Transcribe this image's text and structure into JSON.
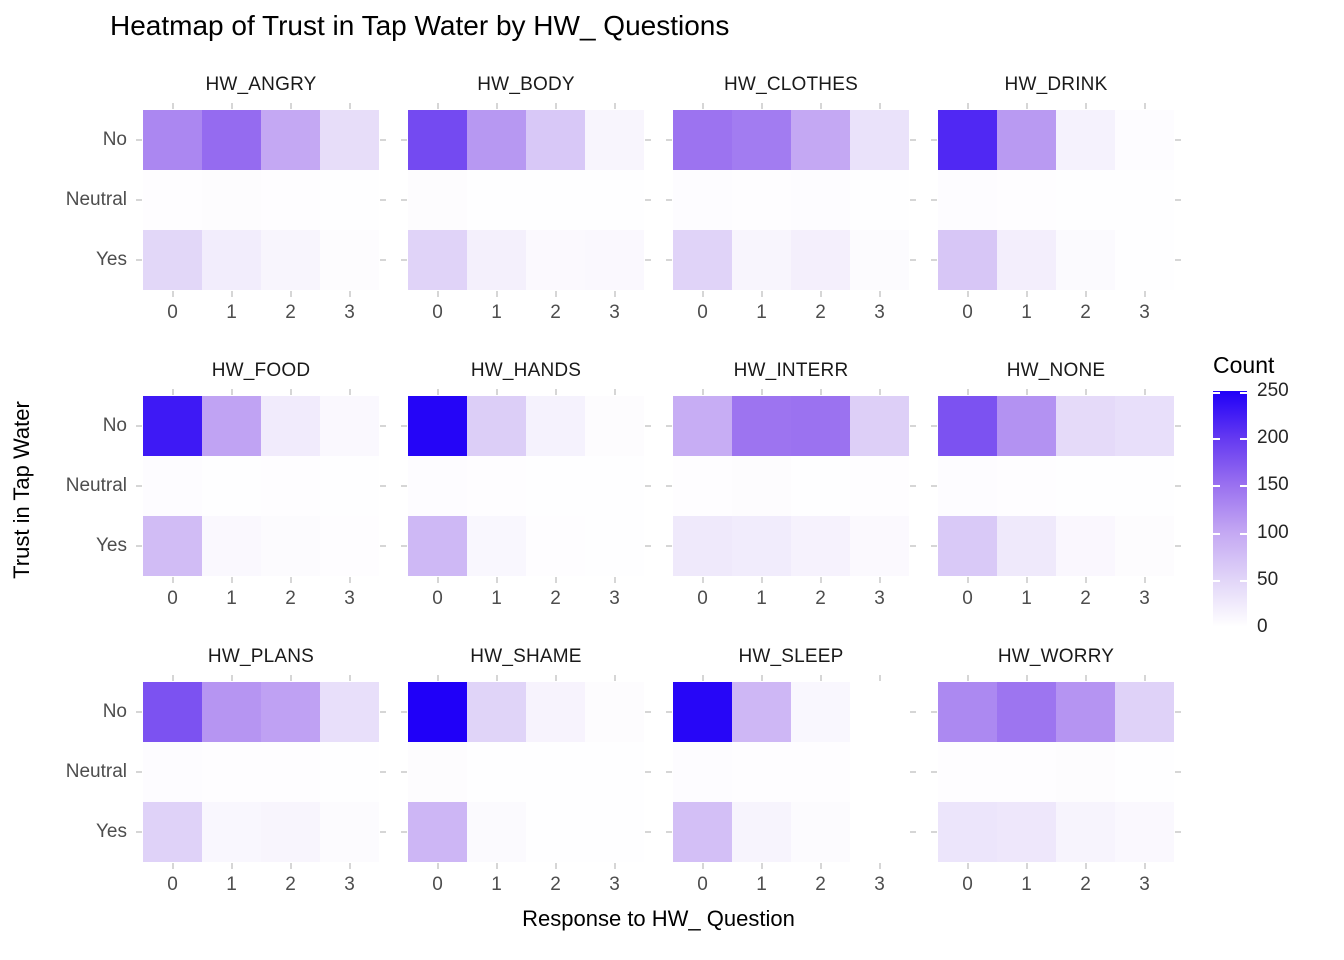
{
  "title": "Heatmap of Trust in Tap Water by HW_ Questions",
  "chart_data": {
    "type": "heatmap",
    "title": "Heatmap of Trust in Tap Water by HW_ Questions",
    "xlabel": "Response to HW_ Question",
    "ylabel": "Trust in Tap Water",
    "x_categories": [
      "0",
      "1",
      "2",
      "3"
    ],
    "y_categories": [
      "No",
      "Neutral",
      "Yes"
    ],
    "facets": [
      {
        "name": "HW_ANGRY",
        "values": [
          [
            130,
            155,
            100,
            40
          ],
          [
            2,
            4,
            2,
            1
          ],
          [
            48,
            22,
            12,
            4
          ]
        ]
      },
      {
        "name": "HW_BODY",
        "values": [
          [
            185,
            115,
            65,
            12
          ],
          [
            4,
            1,
            1,
            1
          ],
          [
            52,
            18,
            7,
            8
          ]
        ]
      },
      {
        "name": "HW_CLOTHES",
        "values": [
          [
            148,
            140,
            100,
            35
          ],
          [
            3,
            2,
            3,
            1
          ],
          [
            52,
            12,
            19,
            5
          ]
        ]
      },
      {
        "name": "HW_DRINK",
        "values": [
          [
            215,
            113,
            16,
            3
          ],
          [
            3,
            2,
            1,
            1
          ],
          [
            67,
            20,
            6,
            1
          ]
        ]
      },
      {
        "name": "HW_FOOD",
        "values": [
          [
            228,
            105,
            24,
            8
          ],
          [
            3,
            1,
            2,
            1
          ],
          [
            78,
            8,
            5,
            2
          ]
        ]
      },
      {
        "name": "HW_HANDS",
        "values": [
          [
            246,
            58,
            16,
            4
          ],
          [
            3,
            2,
            1,
            1
          ],
          [
            82,
            10,
            2,
            1
          ]
        ]
      },
      {
        "name": "HW_INTERR",
        "values": [
          [
            95,
            147,
            149,
            57
          ],
          [
            2,
            4,
            1,
            2
          ],
          [
            26,
            23,
            15,
            7
          ]
        ]
      },
      {
        "name": "HW_NONE",
        "values": [
          [
            178,
            120,
            44,
            38
          ],
          [
            3,
            2,
            1,
            1
          ],
          [
            63,
            26,
            9,
            4
          ]
        ]
      },
      {
        "name": "HW_PLANS",
        "values": [
          [
            178,
            117,
            106,
            38
          ],
          [
            3,
            2,
            2,
            1
          ],
          [
            53,
            10,
            12,
            5
          ]
        ]
      },
      {
        "name": "HW_SHAME",
        "values": [
          [
            250,
            51,
            14,
            4
          ],
          [
            4,
            1,
            1,
            1
          ],
          [
            84,
            6,
            1,
            1
          ]
        ]
      },
      {
        "name": "HW_SLEEP",
        "values": [
          [
            245,
            83,
            10,
            null
          ],
          [
            3,
            2,
            2,
            null
          ],
          [
            75,
            13,
            5,
            null
          ]
        ]
      },
      {
        "name": "HW_WORRY",
        "values": [
          [
            128,
            146,
            118,
            53
          ],
          [
            2,
            2,
            4,
            1
          ],
          [
            31,
            29,
            13,
            8
          ]
        ]
      }
    ],
    "legend": {
      "title": "Count",
      "min": 0,
      "max": 250,
      "ticks": [
        250,
        200,
        150,
        100,
        50,
        0
      ]
    },
    "color_scale": {
      "anchors": [
        {
          "value": 0,
          "color": "#FFFFFF"
        },
        {
          "value": 50,
          "color": "#E1D5F8"
        },
        {
          "value": 100,
          "color": "#C4A8F3"
        },
        {
          "value": 150,
          "color": "#9A71F0"
        },
        {
          "value": 200,
          "color": "#6439F1"
        },
        {
          "value": 250,
          "color": "#2000F8"
        }
      ]
    },
    "layout": {
      "grid": "3 rows x 4 columns of facets",
      "legend_position": "right",
      "tick_marks": "light gray dashes on all four panel edges"
    }
  }
}
